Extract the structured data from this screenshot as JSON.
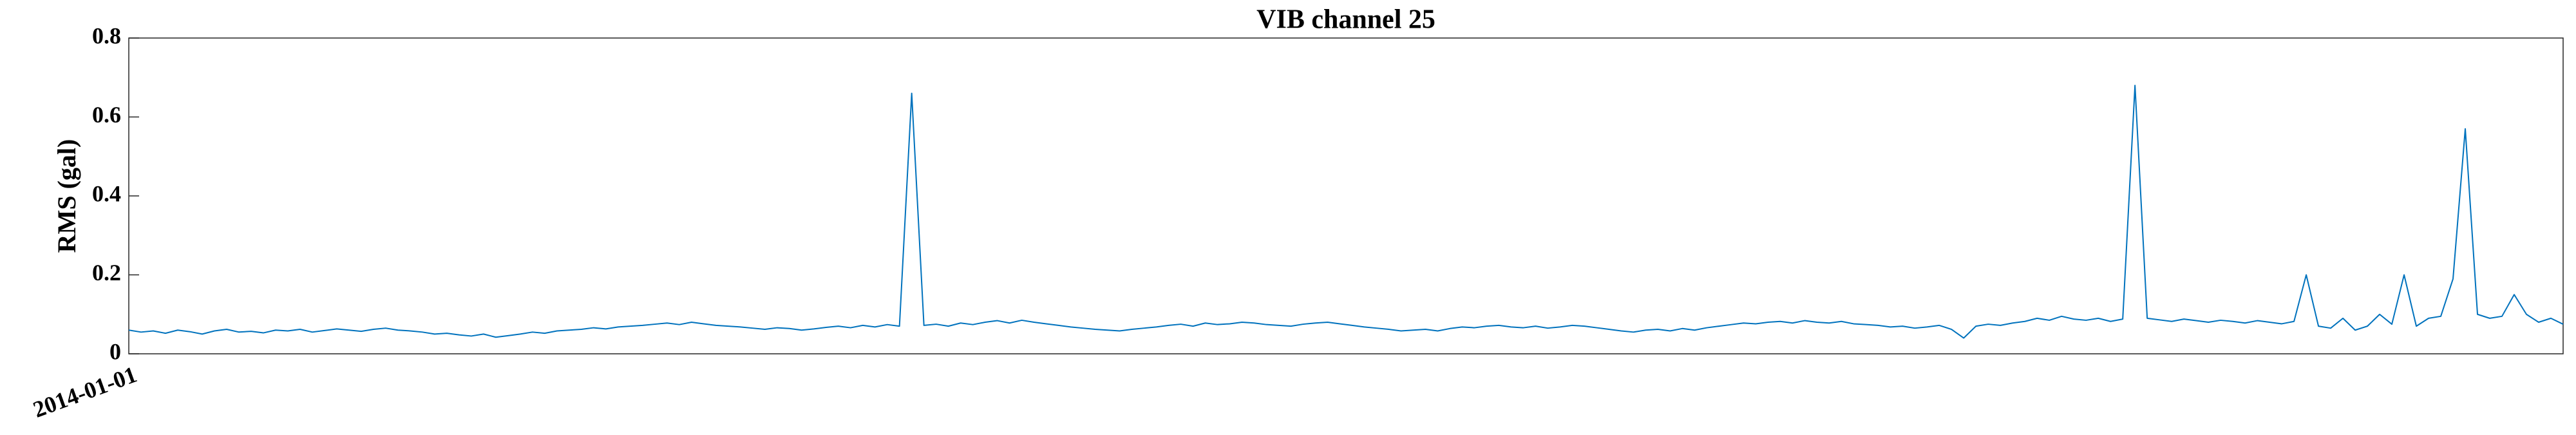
{
  "chart_data": {
    "type": "line",
    "title": "VIB channel 25",
    "y_label": "RMS (gal)",
    "categories": [
      "2014-01-01",
      null,
      null,
      null,
      null,
      null,
      null,
      null,
      null,
      null,
      null,
      null,
      null,
      null,
      null,
      null,
      null,
      null,
      null,
      null,
      null,
      null,
      null,
      null,
      null,
      null,
      null,
      null,
      null,
      null,
      null,
      null,
      null,
      null,
      null,
      null,
      null,
      null,
      null,
      null,
      null,
      null,
      null,
      null,
      null,
      null,
      null,
      null,
      null,
      null,
      null,
      null,
      null,
      null,
      null,
      null,
      null,
      null,
      null,
      null,
      null,
      null,
      null,
      null,
      null,
      null,
      null,
      null,
      null,
      null,
      null,
      null,
      null,
      null,
      null,
      null,
      null,
      null,
      null,
      null,
      null,
      null,
      null,
      null,
      null,
      null,
      null,
      null,
      null,
      null,
      null,
      null,
      null,
      null,
      null,
      null,
      null,
      null,
      null,
      null,
      null,
      null,
      null,
      null,
      null,
      null,
      null,
      null,
      null,
      null,
      null,
      null,
      null,
      null,
      null,
      null,
      null,
      null,
      null,
      null,
      null,
      null,
      null,
      null,
      null,
      null,
      null,
      null,
      null,
      null,
      null,
      null,
      null,
      null,
      null,
      null,
      null,
      null,
      null,
      null,
      null,
      null,
      null,
      null,
      null,
      null,
      null,
      null,
      null,
      null,
      null,
      null,
      null,
      null,
      null,
      null,
      null,
      null,
      null,
      null,
      null,
      null,
      null,
      null,
      null,
      null,
      null,
      null,
      null,
      null,
      null,
      null,
      null,
      null,
      null,
      null,
      null,
      null,
      null,
      null,
      null,
      null,
      null,
      null,
      null,
      null,
      null,
      null,
      null,
      null,
      null,
      null,
      null,
      null,
      null,
      null,
      null,
      null,
      null,
      null
    ],
    "series": [
      {
        "color": "#0072bd",
        "values": [
          0.06,
          0.055,
          0.058,
          0.052,
          0.06,
          0.056,
          0.05,
          0.058,
          0.062,
          0.055,
          0.057,
          0.053,
          0.06,
          0.058,
          0.062,
          0.055,
          0.059,
          0.063,
          0.06,
          0.057,
          0.062,
          0.065,
          0.06,
          0.058,
          0.055,
          0.05,
          0.052,
          0.048,
          0.045,
          0.05,
          0.042,
          0.046,
          0.05,
          0.055,
          0.052,
          0.058,
          0.06,
          0.062,
          0.066,
          0.063,
          0.068,
          0.07,
          0.072,
          0.075,
          0.078,
          0.074,
          0.08,
          0.076,
          0.072,
          0.07,
          0.068,
          0.065,
          0.062,
          0.066,
          0.064,
          0.06,
          0.063,
          0.067,
          0.07,
          0.066,
          0.072,
          0.068,
          0.074,
          0.07,
          0.66,
          0.072,
          0.075,
          0.07,
          0.078,
          0.074,
          0.08,
          0.084,
          0.078,
          0.085,
          0.08,
          0.076,
          0.072,
          0.068,
          0.065,
          0.062,
          0.06,
          0.058,
          0.062,
          0.065,
          0.068,
          0.072,
          0.075,
          0.07,
          0.078,
          0.074,
          0.076,
          0.08,
          0.078,
          0.074,
          0.072,
          0.07,
          0.075,
          0.078,
          0.08,
          0.076,
          0.072,
          0.068,
          0.065,
          0.062,
          0.058,
          0.06,
          0.062,
          0.058,
          0.064,
          0.068,
          0.066,
          0.07,
          0.072,
          0.068,
          0.066,
          0.07,
          0.065,
          0.068,
          0.072,
          0.07,
          0.066,
          0.062,
          0.058,
          0.055,
          0.06,
          0.062,
          0.058,
          0.064,
          0.06,
          0.066,
          0.07,
          0.074,
          0.078,
          0.076,
          0.08,
          0.082,
          0.078,
          0.084,
          0.08,
          0.078,
          0.082,
          0.076,
          0.074,
          0.072,
          0.068,
          0.07,
          0.065,
          0.068,
          0.072,
          0.062,
          0.04,
          0.07,
          0.075,
          0.072,
          0.078,
          0.082,
          0.09,
          0.085,
          0.095,
          0.088,
          0.085,
          0.09,
          0.082,
          0.088,
          0.68,
          0.09,
          0.086,
          0.082,
          0.088,
          0.084,
          0.08,
          0.085,
          0.082,
          0.078,
          0.084,
          0.08,
          0.076,
          0.082,
          0.2,
          0.07,
          0.065,
          0.09,
          0.06,
          0.07,
          0.1,
          0.075,
          0.2,
          0.07,
          0.09,
          0.095,
          0.19,
          0.57,
          0.1,
          0.09,
          0.095,
          0.15,
          0.1,
          0.08,
          0.09,
          0.075
        ]
      }
    ],
    "ylim": [
      0,
      0.8
    ],
    "yticks": [
      0,
      0.2,
      0.4,
      0.6,
      0.8
    ],
    "grid": false
  }
}
